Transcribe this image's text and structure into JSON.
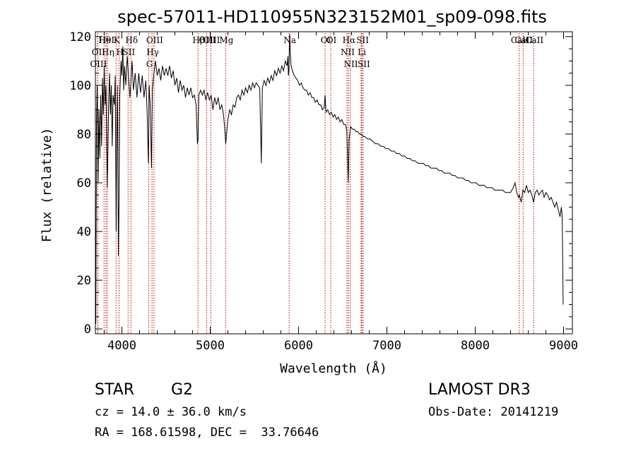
{
  "chart_data": {
    "type": "line",
    "title": "spec-57011-HD110955N323152M01_sp09-098.fits",
    "xlabel": "Wavelength (Å)",
    "ylabel": "Flux (relative)",
    "xlim": [
      3700,
      9100
    ],
    "ylim": [
      -2,
      122
    ],
    "x_ticks": [
      4000,
      5000,
      6000,
      7000,
      8000,
      9000
    ],
    "y_ticks": [
      0,
      20,
      40,
      60,
      80,
      100,
      120
    ],
    "grid": false,
    "series": [
      {
        "name": "spectrum",
        "points": [
          [
            3700,
            32
          ],
          [
            3705,
            2
          ],
          [
            3712,
            82
          ],
          [
            3720,
            100
          ],
          [
            3730,
            60
          ],
          [
            3740,
            90
          ],
          [
            3750,
            70
          ],
          [
            3760,
            96
          ],
          [
            3770,
            75
          ],
          [
            3780,
            103
          ],
          [
            3790,
            88
          ],
          [
            3800,
            108
          ],
          [
            3810,
            92
          ],
          [
            3820,
            100
          ],
          [
            3835,
            58
          ],
          [
            3850,
            93
          ],
          [
            3860,
            105
          ],
          [
            3870,
            88
          ],
          [
            3880,
            100
          ],
          [
            3890,
            75
          ],
          [
            3900,
            96
          ],
          [
            3915,
            92
          ],
          [
            3925,
            104
          ],
          [
            3935,
            40
          ],
          [
            3940,
            70
          ],
          [
            3950,
            100
          ],
          [
            3960,
            30
          ],
          [
            3968,
            55
          ],
          [
            3975,
            95
          ],
          [
            3990,
            110
          ],
          [
            4000,
            104
          ],
          [
            4010,
            116
          ],
          [
            4020,
            98
          ],
          [
            4030,
            108
          ],
          [
            4045,
            100
          ],
          [
            4060,
            112
          ],
          [
            4075,
            104
          ],
          [
            4090,
            95
          ],
          [
            4100,
            100
          ],
          [
            4115,
            110
          ],
          [
            4130,
            98
          ],
          [
            4150,
            105
          ],
          [
            4170,
            95
          ],
          [
            4190,
            105
          ],
          [
            4210,
            97
          ],
          [
            4230,
            104
          ],
          [
            4250,
            95
          ],
          [
            4270,
            102
          ],
          [
            4285,
            90
          ],
          [
            4300,
            68
          ],
          [
            4308,
            100
          ],
          [
            4320,
            92
          ],
          [
            4335,
            66
          ],
          [
            4345,
            98
          ],
          [
            4360,
            104
          ],
          [
            4380,
            110
          ],
          [
            4400,
            104
          ],
          [
            4420,
            107
          ],
          [
            4440,
            102
          ],
          [
            4460,
            108
          ],
          [
            4480,
            104
          ],
          [
            4500,
            107
          ],
          [
            4520,
            104
          ],
          [
            4540,
            108
          ],
          [
            4560,
            103
          ],
          [
            4580,
            106
          ],
          [
            4600,
            100
          ],
          [
            4620,
            103
          ],
          [
            4640,
            97
          ],
          [
            4660,
            102
          ],
          [
            4680,
            98
          ],
          [
            4700,
            100
          ],
          [
            4720,
            95
          ],
          [
            4740,
            99
          ],
          [
            4760,
            96
          ],
          [
            4780,
            99
          ],
          [
            4800,
            95
          ],
          [
            4820,
            96
          ],
          [
            4840,
            92
          ],
          [
            4855,
            76
          ],
          [
            4862,
            78
          ],
          [
            4870,
            96
          ],
          [
            4890,
            98
          ],
          [
            4910,
            96
          ],
          [
            4930,
            98
          ],
          [
            4950,
            94
          ],
          [
            4970,
            97
          ],
          [
            4990,
            94
          ],
          [
            5010,
            96
          ],
          [
            5030,
            90
          ],
          [
            5050,
            95
          ],
          [
            5070,
            92
          ],
          [
            5090,
            95
          ],
          [
            5110,
            90
          ],
          [
            5130,
            92
          ],
          [
            5150,
            88
          ],
          [
            5165,
            82
          ],
          [
            5175,
            76
          ],
          [
            5185,
            80
          ],
          [
            5200,
            86
          ],
          [
            5220,
            90
          ],
          [
            5240,
            88
          ],
          [
            5260,
            92
          ],
          [
            5280,
            91
          ],
          [
            5300,
            95
          ],
          [
            5320,
            96
          ],
          [
            5340,
            94
          ],
          [
            5360,
            98
          ],
          [
            5380,
            96
          ],
          [
            5400,
            99
          ],
          [
            5420,
            97
          ],
          [
            5440,
            100
          ],
          [
            5460,
            98
          ],
          [
            5480,
            101
          ],
          [
            5500,
            99
          ],
          [
            5520,
            101
          ],
          [
            5540,
            100
          ],
          [
            5560,
            99
          ],
          [
            5570,
            82
          ],
          [
            5578,
            68
          ],
          [
            5590,
            99
          ],
          [
            5610,
            102
          ],
          [
            5630,
            100
          ],
          [
            5650,
            103
          ],
          [
            5670,
            101
          ],
          [
            5690,
            104
          ],
          [
            5710,
            102
          ],
          [
            5730,
            106
          ],
          [
            5750,
            104
          ],
          [
            5770,
            107
          ],
          [
            5790,
            105
          ],
          [
            5810,
            108
          ],
          [
            5830,
            106
          ],
          [
            5850,
            110
          ],
          [
            5870,
            108
          ],
          [
            5880,
            112
          ],
          [
            5885,
            104
          ],
          [
            5891,
            106
          ],
          [
            5900,
            121
          ],
          [
            5906,
            114
          ],
          [
            5915,
            108
          ],
          [
            5930,
            106
          ],
          [
            5950,
            104
          ],
          [
            5970,
            103
          ],
          [
            5990,
            102
          ],
          [
            6010,
            100
          ],
          [
            6030,
            101
          ],
          [
            6050,
            99
          ],
          [
            6070,
            98
          ],
          [
            6090,
            98
          ],
          [
            6110,
            96
          ],
          [
            6130,
            97
          ],
          [
            6150,
            95
          ],
          [
            6170,
            95
          ],
          [
            6190,
            93
          ],
          [
            6210,
            94
          ],
          [
            6230,
            92
          ],
          [
            6250,
            92
          ],
          [
            6270,
            90
          ],
          [
            6290,
            91
          ],
          [
            6300,
            96
          ],
          [
            6310,
            89
          ],
          [
            6330,
            90
          ],
          [
            6350,
            88
          ],
          [
            6370,
            89
          ],
          [
            6390,
            87
          ],
          [
            6410,
            88
          ],
          [
            6430,
            86
          ],
          [
            6450,
            87
          ],
          [
            6470,
            85
          ],
          [
            6490,
            86
          ],
          [
            6510,
            84
          ],
          [
            6530,
            84
          ],
          [
            6545,
            82
          ],
          [
            6555,
            70
          ],
          [
            6563,
            60
          ],
          [
            6572,
            78
          ],
          [
            6590,
            83
          ],
          [
            6610,
            82
          ],
          [
            6630,
            82
          ],
          [
            6650,
            81
          ],
          [
            6670,
            81
          ],
          [
            6690,
            80
          ],
          [
            6710,
            80
          ],
          [
            6730,
            79
          ],
          [
            6750,
            79
          ],
          [
            6780,
            78
          ],
          [
            6810,
            78
          ],
          [
            6840,
            77
          ],
          [
            6870,
            76
          ],
          [
            6900,
            76
          ],
          [
            6930,
            75
          ],
          [
            6960,
            75
          ],
          [
            6990,
            74
          ],
          [
            7020,
            74
          ],
          [
            7050,
            73
          ],
          [
            7080,
            73
          ],
          [
            7110,
            72
          ],
          [
            7140,
            72
          ],
          [
            7170,
            71
          ],
          [
            7200,
            71
          ],
          [
            7230,
            70
          ],
          [
            7260,
            70
          ],
          [
            7290,
            69
          ],
          [
            7320,
            69
          ],
          [
            7350,
            68
          ],
          [
            7380,
            68
          ],
          [
            7410,
            68
          ],
          [
            7440,
            67
          ],
          [
            7470,
            67
          ],
          [
            7500,
            66
          ],
          [
            7530,
            66
          ],
          [
            7560,
            66
          ],
          [
            7590,
            65
          ],
          [
            7620,
            65
          ],
          [
            7650,
            64
          ],
          [
            7680,
            64
          ],
          [
            7710,
            64
          ],
          [
            7740,
            63
          ],
          [
            7770,
            63
          ],
          [
            7800,
            62
          ],
          [
            7830,
            62
          ],
          [
            7860,
            62
          ],
          [
            7890,
            61
          ],
          [
            7920,
            61
          ],
          [
            7950,
            60
          ],
          [
            7980,
            60
          ],
          [
            8010,
            60
          ],
          [
            8040,
            59
          ],
          [
            8070,
            59
          ],
          [
            8100,
            59
          ],
          [
            8130,
            58
          ],
          [
            8160,
            58
          ],
          [
            8190,
            58
          ],
          [
            8220,
            57
          ],
          [
            8250,
            57
          ],
          [
            8280,
            57
          ],
          [
            8310,
            57
          ],
          [
            8340,
            56
          ],
          [
            8370,
            56
          ],
          [
            8400,
            56
          ],
          [
            8430,
            58
          ],
          [
            8450,
            60
          ],
          [
            8470,
            56
          ],
          [
            8490,
            54
          ],
          [
            8500,
            55
          ],
          [
            8520,
            52
          ],
          [
            8540,
            57
          ],
          [
            8560,
            56
          ],
          [
            8580,
            59
          ],
          [
            8600,
            56
          ],
          [
            8620,
            57
          ],
          [
            8640,
            55
          ],
          [
            8660,
            52
          ],
          [
            8680,
            56
          ],
          [
            8700,
            57
          ],
          [
            8720,
            55
          ],
          [
            8740,
            56
          ],
          [
            8760,
            57
          ],
          [
            8780,
            54
          ],
          [
            8800,
            56
          ],
          [
            8820,
            55
          ],
          [
            8840,
            53
          ],
          [
            8860,
            54
          ],
          [
            8880,
            52
          ],
          [
            8900,
            50
          ],
          [
            8920,
            52
          ],
          [
            8940,
            49
          ],
          [
            8960,
            46
          ],
          [
            8975,
            50
          ],
          [
            8985,
            46
          ],
          [
            8995,
            10
          ]
        ]
      }
    ],
    "line_markers": [
      {
        "label": "Hθ",
        "wavelength": 3798
      },
      {
        "label": "OII",
        "wavelength": 3727
      },
      {
        "label": "OIII",
        "wavelength": 3727
      },
      {
        "label": "HeI",
        "wavelength": 3820
      },
      {
        "label": "Hη",
        "wavelength": 3835
      },
      {
        "label": "K",
        "wavelength": 3934
      },
      {
        "label": "H",
        "wavelength": 3968
      },
      {
        "label": "Hδ",
        "wavelength": 4102
      },
      {
        "label": "SII",
        "wavelength": 4070
      },
      {
        "label": "OIII",
        "wavelength": 4363
      },
      {
        "label": "Hγ",
        "wavelength": 4341
      },
      {
        "label": "G",
        "wavelength": 4304
      },
      {
        "label": "OIII",
        "wavelength": 5007
      },
      {
        "label": "OIII",
        "wavelength": 4959
      },
      {
        "label": "Hβ",
        "wavelength": 4861
      },
      {
        "label": "Mg",
        "wavelength": 5175
      },
      {
        "label": "Na",
        "wavelength": 5893
      },
      {
        "label": "OI",
        "wavelength": 6300
      },
      {
        "label": "OI",
        "wavelength": 6364
      },
      {
        "label": "Hα",
        "wavelength": 6563
      },
      {
        "label": "NII",
        "wavelength": 6548
      },
      {
        "label": "NII",
        "wavelength": 6584
      },
      {
        "label": "SII",
        "wavelength": 6717
      },
      {
        "label": "Li",
        "wavelength": 6708
      },
      {
        "label": "SII",
        "wavelength": 6731
      },
      {
        "label": "CaII",
        "wavelength": 8542
      },
      {
        "label": "CaII",
        "wavelength": 8498
      },
      {
        "label": "CaII",
        "wavelength": 8662
      }
    ],
    "line_marker_color": "#c00000"
  },
  "info": {
    "object_class": "STAR",
    "subclass": "G2",
    "survey": "LAMOST DR3",
    "redshift": "cz = 14.0 ± 36.0 km/s",
    "obs_date": "Obs-Date: 20141219",
    "coords": "RA = 168.61598, DEC =  33.76646"
  }
}
